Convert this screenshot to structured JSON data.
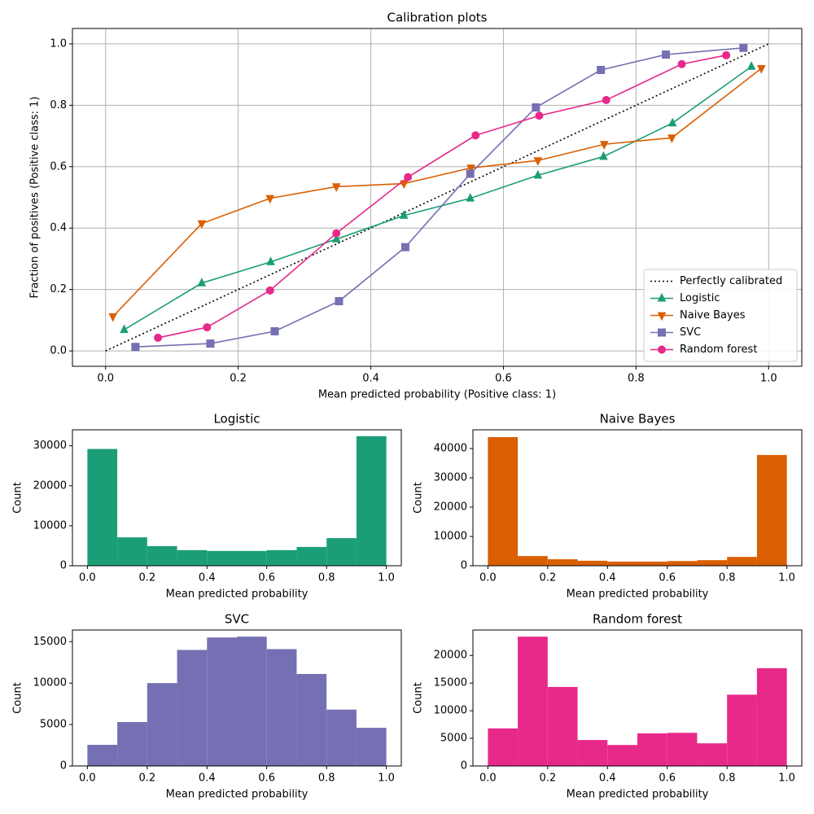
{
  "chart_data": [
    {
      "type": "line",
      "title": "Calibration plots",
      "x_label": "Mean predicted probability (Positive class: 1)",
      "y_label": "Fraction of positives (Positive class: 1)",
      "xlim": [
        -0.05,
        1.05
      ],
      "ylim": [
        -0.05,
        1.05
      ],
      "xticks": [
        {
          "value": 0,
          "label": "0.0"
        },
        0.2,
        0.4,
        0.6,
        0.8,
        {
          "value": 1,
          "label": "1.0"
        }
      ],
      "yticks": [
        {
          "value": 0,
          "label": "0.0"
        },
        0.2,
        0.4,
        0.6,
        0.8,
        {
          "value": 1,
          "label": "1.0"
        }
      ],
      "grid": true,
      "legend": "lower right",
      "series": [
        {
          "name": "Perfectly calibrated",
          "color": "#000000",
          "linestyle": "dotted",
          "x": [
            0,
            1
          ],
          "values": [
            0,
            1
          ]
        },
        {
          "name": "Logistic",
          "color": "#1b9e77",
          "marker": "^",
          "x": [
            0.028,
            0.145,
            0.249,
            0.348,
            0.45,
            0.55,
            0.652,
            0.751,
            0.855,
            0.974
          ],
          "values": [
            0.069,
            0.221,
            0.29,
            0.364,
            0.441,
            0.497,
            0.572,
            0.633,
            0.742,
            0.926
          ]
        },
        {
          "name": "Naive Bayes",
          "color": "#d95f02",
          "marker": "v",
          "x": [
            0.011,
            0.145,
            0.248,
            0.348,
            0.45,
            0.551,
            0.652,
            0.752,
            0.854,
            0.989
          ],
          "values": [
            0.112,
            0.415,
            0.497,
            0.535,
            0.545,
            0.596,
            0.62,
            0.673,
            0.694,
            0.92
          ]
        },
        {
          "name": "SVC",
          "color": "#7570b3",
          "marker": "s",
          "x": [
            0.045,
            0.158,
            0.255,
            0.352,
            0.452,
            0.55,
            0.649,
            0.747,
            0.845,
            0.962
          ],
          "values": [
            0.013,
            0.024,
            0.064,
            0.162,
            0.338,
            0.577,
            0.793,
            0.915,
            0.965,
            0.987
          ]
        },
        {
          "name": "Random forest",
          "color": "#e7298a",
          "marker": "o",
          "x": [
            0.079,
            0.153,
            0.248,
            0.348,
            0.456,
            0.558,
            0.654,
            0.755,
            0.869,
            0.936
          ],
          "values": [
            0.043,
            0.077,
            0.197,
            0.383,
            0.566,
            0.702,
            0.766,
            0.817,
            0.934,
            0.963
          ]
        }
      ]
    },
    {
      "type": "histogram",
      "title": "Logistic",
      "x_label": "Mean predicted probability",
      "y_label": "Count",
      "color": "#1b9e77",
      "bins": [
        0,
        0.1,
        0.2,
        0.3,
        0.4,
        0.5,
        0.6,
        0.7,
        0.8,
        0.9,
        1
      ],
      "values": [
        29200,
        7100,
        4900,
        3900,
        3700,
        3700,
        3900,
        4700,
        6900,
        32400
      ],
      "xlim": [
        -0.05,
        1.05
      ],
      "ylim": [
        0,
        34000
      ],
      "xticks": [
        {
          "value": 0,
          "label": "0.0"
        },
        0.2,
        0.4,
        0.6,
        0.8,
        {
          "value": 1,
          "label": "1.0"
        }
      ],
      "yticks": [
        0,
        10000,
        20000,
        30000
      ]
    },
    {
      "type": "histogram",
      "title": "Naive Bayes",
      "x_label": "Mean predicted probability",
      "y_label": "Count",
      "color": "#d95f02",
      "bins": [
        0,
        0.1,
        0.2,
        0.3,
        0.4,
        0.5,
        0.6,
        0.7,
        0.8,
        0.9,
        1
      ],
      "values": [
        43900,
        3300,
        2200,
        1700,
        1400,
        1400,
        1600,
        1900,
        3000,
        37800
      ],
      "xlim": [
        -0.05,
        1.05
      ],
      "ylim": [
        0,
        46400
      ],
      "xticks": [
        {
          "value": 0,
          "label": "0.0"
        },
        0.2,
        0.4,
        0.6,
        0.8,
        {
          "value": 1,
          "label": "1.0"
        }
      ],
      "yticks": [
        0,
        10000,
        20000,
        30000,
        40000
      ]
    },
    {
      "type": "histogram",
      "title": "SVC",
      "x_label": "Mean predicted probability",
      "y_label": "Count",
      "color": "#7570b3",
      "bins": [
        0,
        0.1,
        0.2,
        0.3,
        0.4,
        0.5,
        0.6,
        0.7,
        0.8,
        0.9,
        1
      ],
      "values": [
        2550,
        5300,
        10000,
        14000,
        15500,
        15600,
        14100,
        11100,
        6800,
        4600
      ],
      "xlim": [
        -0.05,
        1.05
      ],
      "ylim": [
        0,
        16400
      ],
      "xticks": [
        {
          "value": 0,
          "label": "0.0"
        },
        0.2,
        0.4,
        0.6,
        0.8,
        {
          "value": 1,
          "label": "1.0"
        }
      ],
      "yticks": [
        0,
        5000,
        10000,
        15000
      ]
    },
    {
      "type": "histogram",
      "title": "Random forest",
      "x_label": "Mean predicted probability",
      "y_label": "Count",
      "color": "#e7298a",
      "bins": [
        0,
        0.1,
        0.2,
        0.3,
        0.4,
        0.5,
        0.6,
        0.7,
        0.8,
        0.9,
        1
      ],
      "values": [
        6800,
        23400,
        14300,
        4700,
        3800,
        5900,
        6000,
        4100,
        12900,
        17700
      ],
      "xlim": [
        -0.05,
        1.05
      ],
      "ylim": [
        0,
        24600
      ],
      "xticks": [
        {
          "value": 0,
          "label": "0.0"
        },
        0.2,
        0.4,
        0.6,
        0.8,
        {
          "value": 1,
          "label": "1.0"
        }
      ],
      "yticks": [
        0,
        5000,
        10000,
        15000,
        20000
      ]
    }
  ]
}
